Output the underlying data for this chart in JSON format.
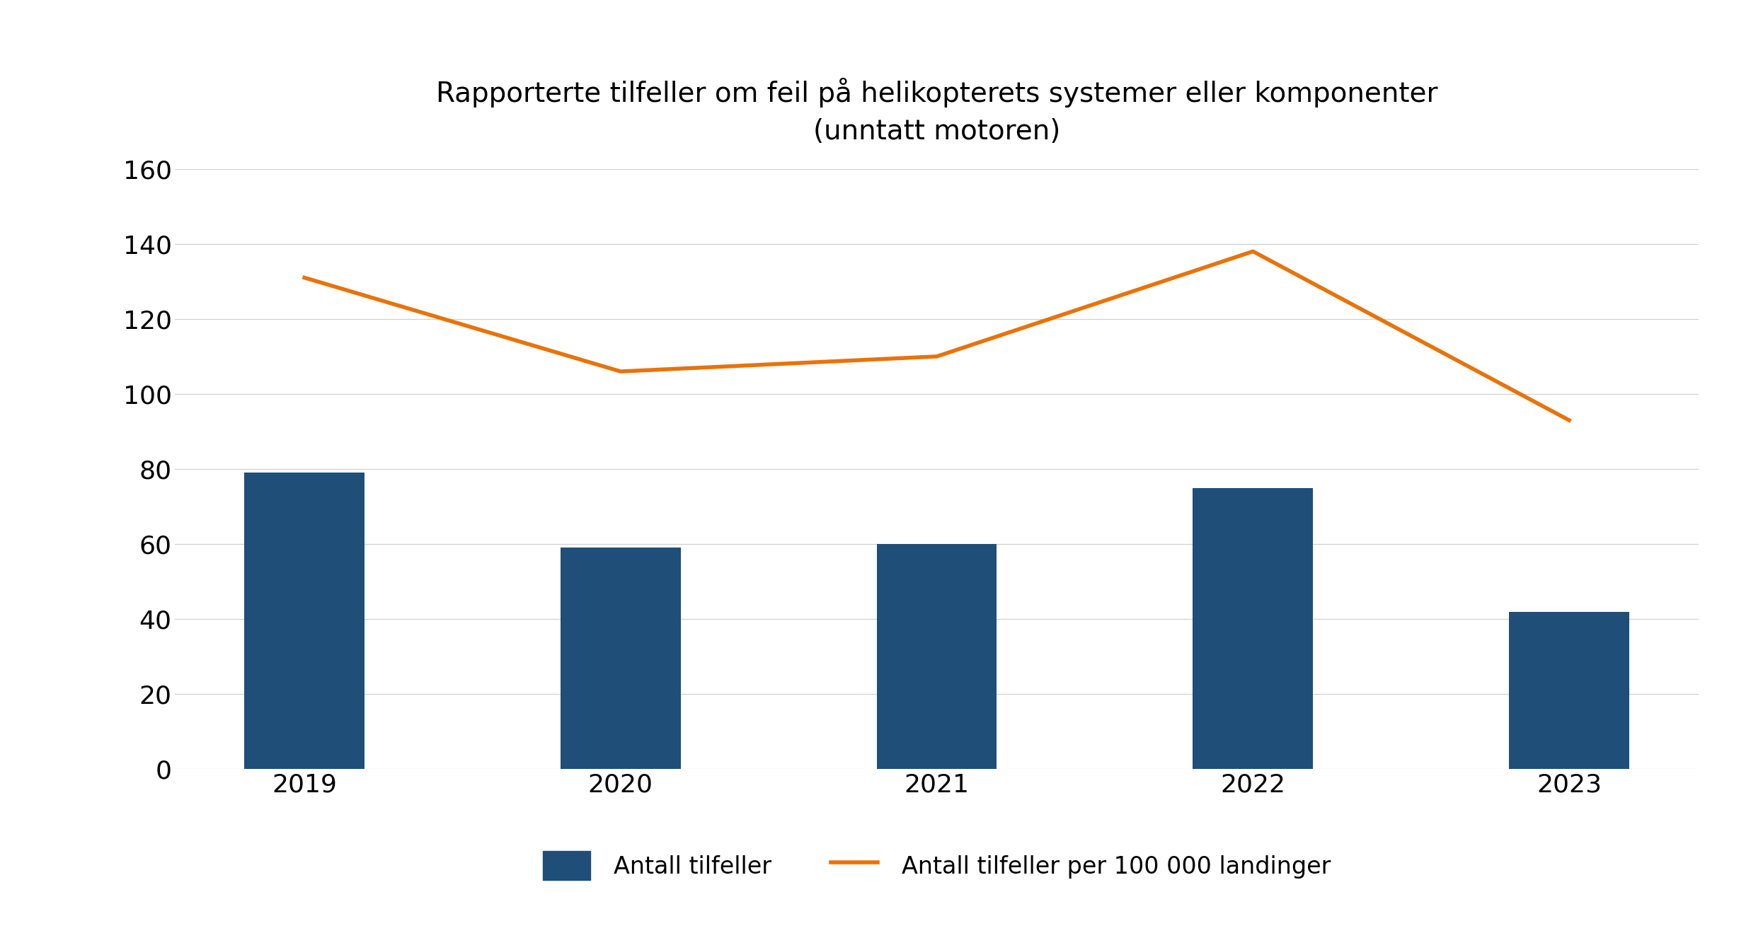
{
  "title": "Rapporterte tilfeller om feil på helikopterets systemer eller komponenter\n(unntatt motoren)",
  "years": [
    2019,
    2020,
    2021,
    2022,
    2023
  ],
  "bar_values": [
    79,
    59,
    60,
    75,
    42
  ],
  "line_values": [
    131,
    106,
    110,
    138,
    93
  ],
  "bar_color": "#1F4E79",
  "line_color": "#E8730A",
  "ylim": [
    0,
    160
  ],
  "yticks": [
    0,
    20,
    40,
    60,
    80,
    100,
    120,
    140,
    160
  ],
  "legend_bar_label": "Antall tilfeller",
  "legend_line_label": "Antall tilfeller per 100 000 landinger",
  "background_color": "#ffffff",
  "title_fontsize": 28,
  "tick_fontsize": 26,
  "legend_fontsize": 24,
  "bar_width": 0.38
}
